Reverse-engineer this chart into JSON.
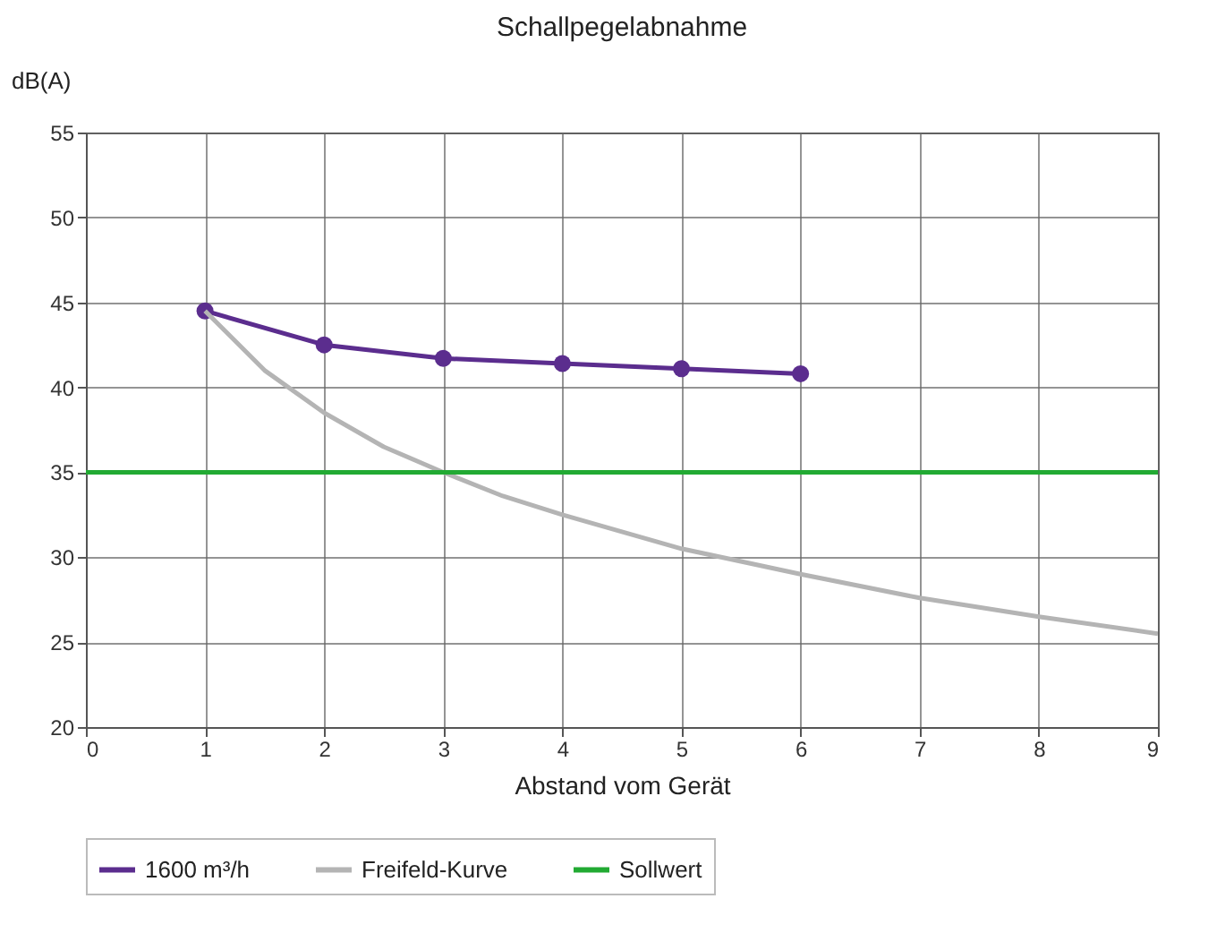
{
  "chart_data": {
    "type": "line",
    "title": "Schallpegelabnahme",
    "xlabel": "Abstand vom Gerät",
    "ylabel": "dB(A)",
    "xlim": [
      0,
      9
    ],
    "xticks": [
      0,
      1,
      2,
      3,
      4,
      5,
      6,
      7,
      8,
      9
    ],
    "ylim": [
      20,
      55
    ],
    "yticks": [
      20,
      25,
      30,
      35,
      40,
      45,
      50,
      55
    ],
    "grid": true,
    "legend": "bottom",
    "series": [
      {
        "name": "1600 m³/h",
        "color": "#5b2d8e",
        "marker": "circle",
        "x": [
          1,
          2,
          3,
          4,
          5,
          6
        ],
        "values": [
          44.5,
          42.5,
          41.7,
          41.4,
          41.1,
          40.8
        ]
      },
      {
        "name": "Freifeld-Kurve",
        "color": "#b4b4b4",
        "x": [
          1,
          1.5,
          2,
          2.5,
          3,
          3.5,
          4,
          5,
          6,
          7,
          8,
          9
        ],
        "values": [
          44.5,
          41,
          38.5,
          36.5,
          35,
          33.6,
          32.5,
          30.5,
          29,
          27.6,
          26.5,
          25.5
        ]
      },
      {
        "name": "Sollwert",
        "color": "#22aa33",
        "x": [
          0,
          9
        ],
        "values": [
          35,
          35
        ]
      }
    ]
  }
}
